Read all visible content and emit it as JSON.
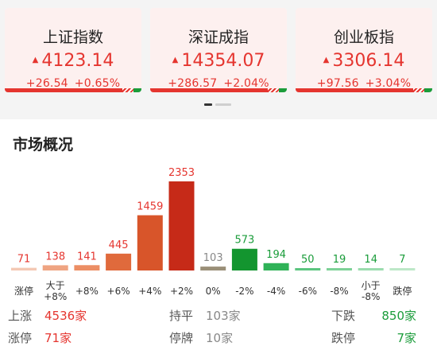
{
  "indices": [
    {
      "name": "上证指数",
      "price": "4123.14",
      "change": "+26.54",
      "pct": "+0.65%",
      "up_share": 0.86
    },
    {
      "name": "深证成指",
      "price": "14354.07",
      "change": "+286.57",
      "pct": "+2.04%",
      "up_share": 0.86
    },
    {
      "name": "创业板指",
      "price": "3306.14",
      "change": "+97.56",
      "pct": "+3.04%",
      "up_share": 0.86
    }
  ],
  "colors": {
    "up": "#e5352f",
    "down": "#1a9c3a",
    "flat": "#9a8f78"
  },
  "market": {
    "title": "市场概况",
    "stats": {
      "up_label": "上涨",
      "up_value": "4536家",
      "flat_label": "持平",
      "flat_value": "103家",
      "down_label": "下跌",
      "down_value": "850家",
      "limit_up_label": "涨停",
      "limit_up_value": "71家",
      "suspended_label": "停牌",
      "suspended_value": "10家",
      "limit_down_label": "跌停",
      "limit_down_value": "7家"
    }
  },
  "chart_data": {
    "type": "bar",
    "categories": [
      "涨停",
      "大于\n+8%",
      "+8%",
      "+6%",
      "+4%",
      "+2%",
      "0%",
      "-2%",
      "-4%",
      "-6%",
      "-8%",
      "小于\n-8%",
      "跌停"
    ],
    "values": [
      71,
      138,
      141,
      445,
      1459,
      2353,
      103,
      573,
      194,
      50,
      19,
      14,
      7
    ],
    "bar_colors": [
      "#f4c8b4",
      "#efa482",
      "#ec8e64",
      "#e06a3c",
      "#d8552a",
      "#c62a18",
      "#9a8f78",
      "#13952f",
      "#2fb257",
      "#5cc57f",
      "#7dd197",
      "#9bdcae",
      "#bde8c8"
    ],
    "label_colors": [
      "#e5352f",
      "#e5352f",
      "#e5352f",
      "#e5352f",
      "#e5352f",
      "#e5352f",
      "#888888",
      "#1a9c3a",
      "#1a9c3a",
      "#1a9c3a",
      "#1a9c3a",
      "#1a9c3a",
      "#1a9c3a"
    ],
    "title": "",
    "xlabel": "",
    "ylabel": "",
    "ylim": [
      0,
      2353
    ]
  }
}
